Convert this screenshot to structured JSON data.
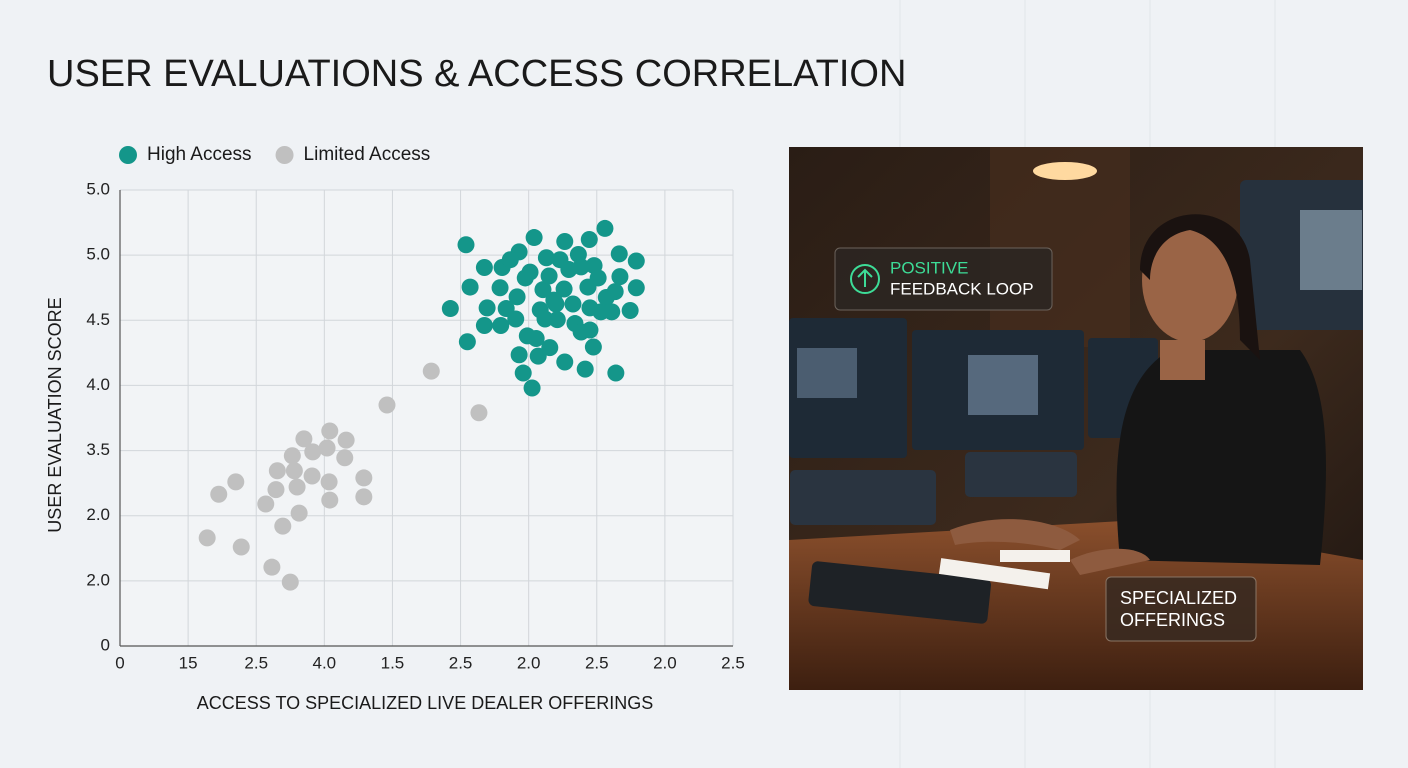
{
  "chart_data": {
    "type": "scatter",
    "title": "USER EVALUATIONS & ACCESS CORRELATION",
    "xlabel": "ACCESS TO SPECIALIZED LIVE DEALER OFFERINGS",
    "ylabel": "USER EVALUATION SCORE",
    "xlim": [
      0,
      9
    ],
    "ylim": [
      0,
      7
    ],
    "xticks": [
      0,
      {
        "value": 1,
        "label": "15"
      },
      {
        "value": 2,
        "label": "2.5"
      },
      {
        "value": 3,
        "label": "4.0"
      },
      {
        "value": 4,
        "label": "1.5"
      },
      {
        "value": 5,
        "label": "2.5"
      },
      {
        "value": 6,
        "label": "2.0"
      },
      {
        "value": 7,
        "label": "2.5"
      },
      {
        "value": 8,
        "label": "2.0"
      },
      {
        "value": 9,
        "label": "2.5"
      }
    ],
    "yticks": [
      0,
      {
        "value": 1,
        "label": "2.0"
      },
      {
        "value": 2,
        "label": "2.0"
      },
      {
        "value": 3,
        "label": "3.5"
      },
      {
        "value": 4,
        "label": "4.0"
      },
      {
        "value": 5,
        "label": "4.5"
      },
      {
        "value": 6,
        "label": "5.0"
      },
      {
        "value": 7,
        "label": "5.0"
      }
    ],
    "grid": true,
    "legend": "top-left",
    "series": [
      {
        "name": "High Access",
        "color": "#14968a",
        "x": [
          5.08,
          6.08,
          7.12,
          6.53,
          6.89,
          5.14,
          5.35,
          5.61,
          5.86,
          6.26,
          6.46,
          6.73,
          7.33,
          7.58,
          4.85,
          5.1,
          5.39,
          5.35,
          5.58,
          5.59,
          5.83,
          5.81,
          5.86,
          5.92,
          6.05,
          5.95,
          6.02,
          6.21,
          6.3,
          6.17,
          6.11,
          6.31,
          6.42,
          6.52,
          6.59,
          6.65,
          6.68,
          6.87,
          6.9,
          6.96,
          7.02,
          7.14,
          7.22,
          7.34,
          7.27,
          7.49,
          7.58,
          6.53,
          6.83,
          6.95,
          7.28,
          6.14,
          6.4,
          5.98,
          5.67,
          6.77,
          7.06,
          6.24,
          6.9,
          5.73,
          6.37,
          6.77
        ],
        "values": [
          6.16,
          6.27,
          6.41,
          6.21,
          6.24,
          5.51,
          5.81,
          5.81,
          6.05,
          5.96,
          5.93,
          6.01,
          6.02,
          5.91,
          5.18,
          4.67,
          5.19,
          4.92,
          5.5,
          4.92,
          5.36,
          5.02,
          4.47,
          4.19,
          3.96,
          5.65,
          5.74,
          5.47,
          5.68,
          5.16,
          4.72,
          4.58,
          5.01,
          5.48,
          5.78,
          5.25,
          4.95,
          5.51,
          5.19,
          5.84,
          5.65,
          5.35,
          5.13,
          5.67,
          5.44,
          5.15,
          5.5,
          4.36,
          4.25,
          4.59,
          4.19,
          4.45,
          5.25,
          4.76,
          5.18,
          4.82,
          5.13,
          5.02,
          4.85,
          5.93,
          5.31,
          5.82
        ]
      },
      {
        "name": "Limited Access",
        "color": "#c0c0c0",
        "x": [
          4.57,
          3.92,
          5.27,
          3.08,
          2.7,
          3.32,
          2.83,
          3.04,
          3.3,
          2.53,
          2.31,
          2.56,
          1.7,
          1.45,
          2.82,
          2.29,
          2.6,
          3.07,
          3.58,
          2.14,
          2.39,
          2.63,
          3.08,
          3.58,
          1.28,
          1.78,
          2.23,
          2.5
        ],
        "values": [
          4.22,
          3.7,
          3.58,
          3.3,
          3.18,
          3.16,
          2.98,
          3.04,
          2.89,
          2.92,
          2.69,
          2.69,
          2.52,
          2.33,
          2.61,
          2.4,
          2.44,
          2.52,
          2.58,
          2.18,
          1.84,
          2.04,
          2.24,
          2.29,
          1.66,
          1.52,
          1.21,
          0.98
        ]
      }
    ]
  },
  "photo": {
    "badges": [
      {
        "label": "POSITIVE",
        "text": "FEEDBACK LOOP"
      },
      {
        "text": "SPECIALIZED OFFERINGS"
      }
    ]
  }
}
